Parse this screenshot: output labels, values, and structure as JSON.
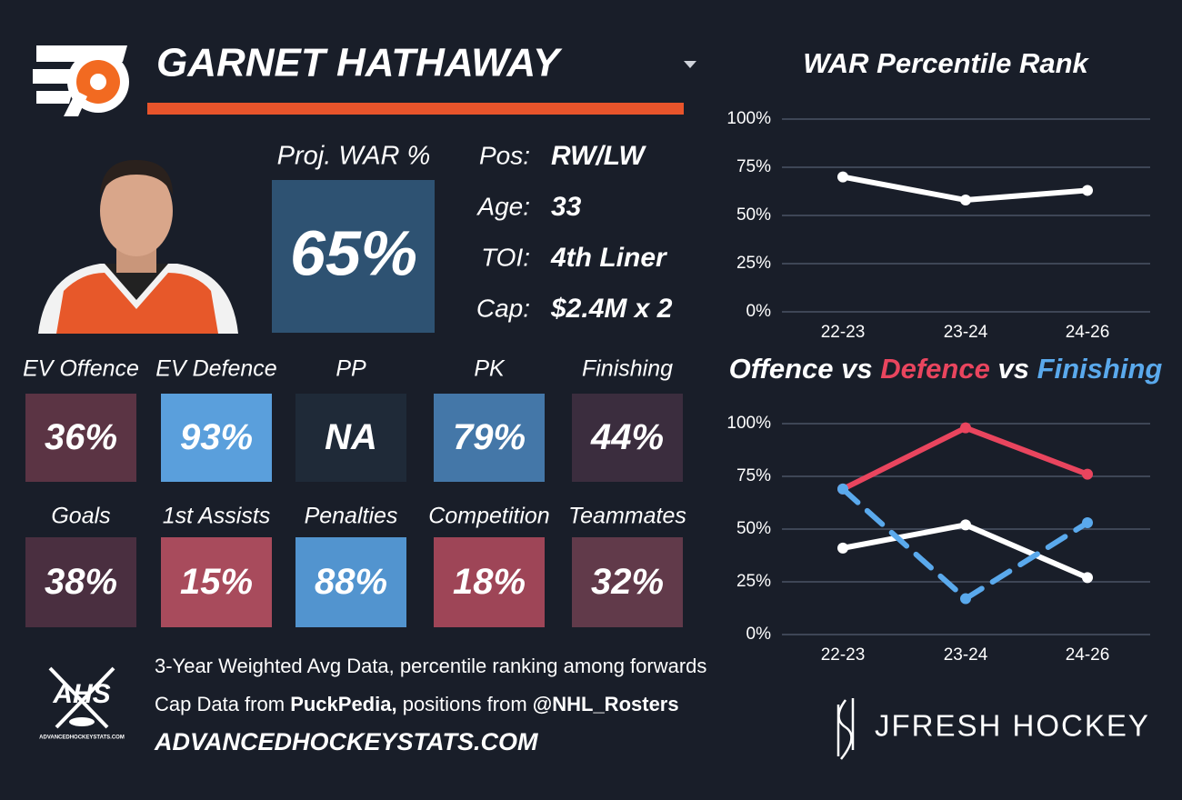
{
  "header": {
    "player_name": "GARNET HATHAWAY"
  },
  "projection": {
    "label": "Proj. WAR %",
    "value": "65%",
    "color": "#2e5272"
  },
  "info": [
    {
      "label": "Pos:",
      "value": "RW/LW"
    },
    {
      "label": "Age:",
      "value": "33"
    },
    {
      "label": "TOI:",
      "value": "4th Liner"
    },
    {
      "label": "Cap:",
      "value": "$2.4M x 2"
    }
  ],
  "tiles": [
    {
      "label": "EV Offence",
      "value": "36%",
      "color": "#5b3444"
    },
    {
      "label": "EV Defence",
      "value": "93%",
      "color": "#5a9fdc"
    },
    {
      "label": "PP",
      "value": "NA",
      "color": "#1f2a38"
    },
    {
      "label": "PK",
      "value": "79%",
      "color": "#4477a8"
    },
    {
      "label": "Finishing",
      "value": "44%",
      "color": "#3b2d3e"
    },
    {
      "label": "Goals",
      "value": "38%",
      "color": "#4a2f40"
    },
    {
      "label": "1st Assists",
      "value": "15%",
      "color": "#a84b5c"
    },
    {
      "label": "Penalties",
      "value": "88%",
      "color": "#5294cf"
    },
    {
      "label": "Competition",
      "value": "18%",
      "color": "#9e4557"
    },
    {
      "label": "Teammates",
      "value": "32%",
      "color": "#613a4a"
    }
  ],
  "footer": {
    "note": "3-Year Weighted Avg Data, percentile ranking among forwards",
    "source_parts": [
      "Cap Data from",
      "PuckPedia,",
      "positions from",
      "@NHL_Rosters"
    ],
    "website": "ADVANCEDHOCKEYSTATS.COM",
    "logo_text": "AHS",
    "logo_subtext": "ADVANCEDHOCKEYSTATS.COM",
    "brand": "JFRESH HOCKEY"
  },
  "chart_data": [
    {
      "type": "line",
      "title": "WAR Percentile Rank",
      "categories": [
        "22-23",
        "23-24",
        "24-26"
      ],
      "series": [
        {
          "color": "#ffffff",
          "values": [
            70,
            58,
            63
          ]
        }
      ],
      "ylim": [
        0,
        100
      ],
      "yticks": [
        {
          "value": 0,
          "label": "0%"
        },
        {
          "value": 25,
          "label": "25%"
        },
        {
          "value": 50,
          "label": "50%"
        },
        {
          "value": 75,
          "label": "75%"
        },
        {
          "value": 100,
          "label": "100%"
        }
      ],
      "grid": true
    },
    {
      "type": "line",
      "title_connector": "vs",
      "categories": [
        "22-23",
        "23-24",
        "24-26"
      ],
      "series": [
        {
          "name": "Offence",
          "color": "#ffffff",
          "values": [
            41,
            52,
            27
          ]
        },
        {
          "name": "Defence",
          "color": "#e9455e",
          "values": [
            69,
            98,
            76
          ]
        },
        {
          "name": "Finishing",
          "color": "#5aa9ec",
          "values": [
            69,
            17,
            53
          ],
          "dashed": true
        }
      ],
      "ylim": [
        0,
        100
      ],
      "yticks": [
        {
          "value": 0,
          "label": "0%"
        },
        {
          "value": 25,
          "label": "25%"
        },
        {
          "value": 50,
          "label": "50%"
        },
        {
          "value": 75,
          "label": "75%"
        },
        {
          "value": 100,
          "label": "100%"
        }
      ],
      "grid": true
    }
  ]
}
